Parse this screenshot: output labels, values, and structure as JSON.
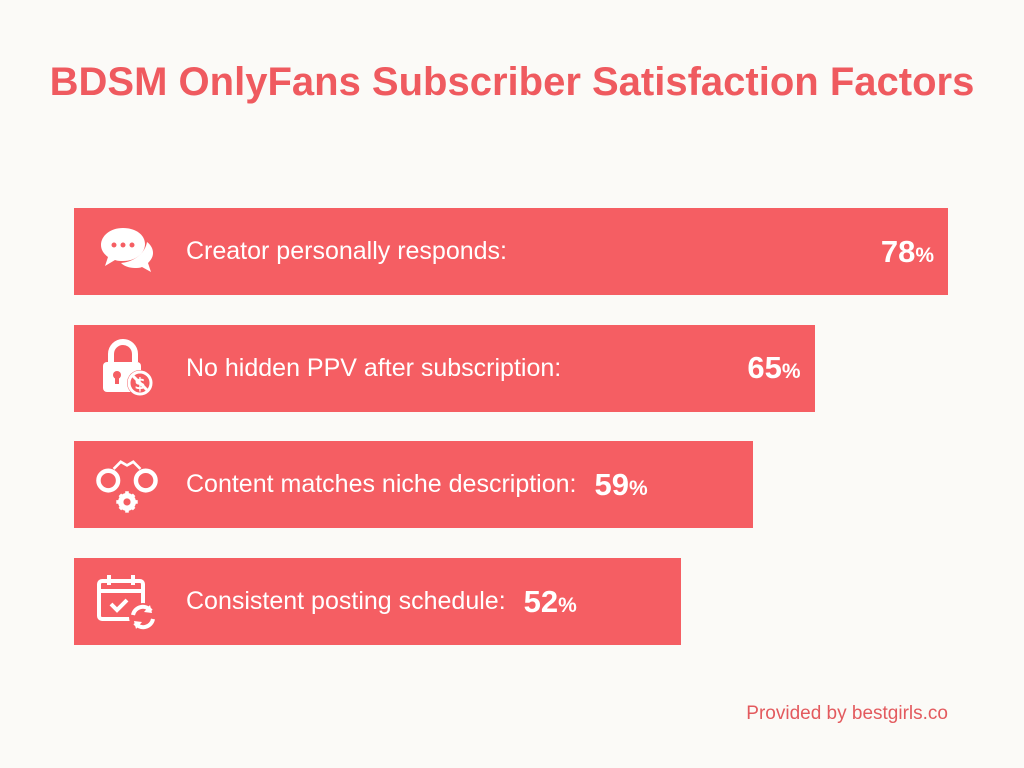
{
  "chart_data": {
    "type": "bar",
    "orientation": "horizontal",
    "title": "BDSM OnlyFans Subscriber Satisfaction Factors",
    "categories": [
      "Creator personally responds:",
      "No hidden PPV after subscription:",
      "Content matches niche description:",
      "Consistent posting schedule:"
    ],
    "values": [
      78,
      65,
      59,
      52
    ],
    "unit": "%",
    "icons": [
      "chat-bubbles-icon",
      "lock-no-dollar-icon",
      "handcuffs-gear-icon",
      "calendar-check-refresh-icon"
    ],
    "bar_color": "#f55e63",
    "grid": false
  },
  "footer": {
    "credit": "Provided by bestgirls.co"
  }
}
